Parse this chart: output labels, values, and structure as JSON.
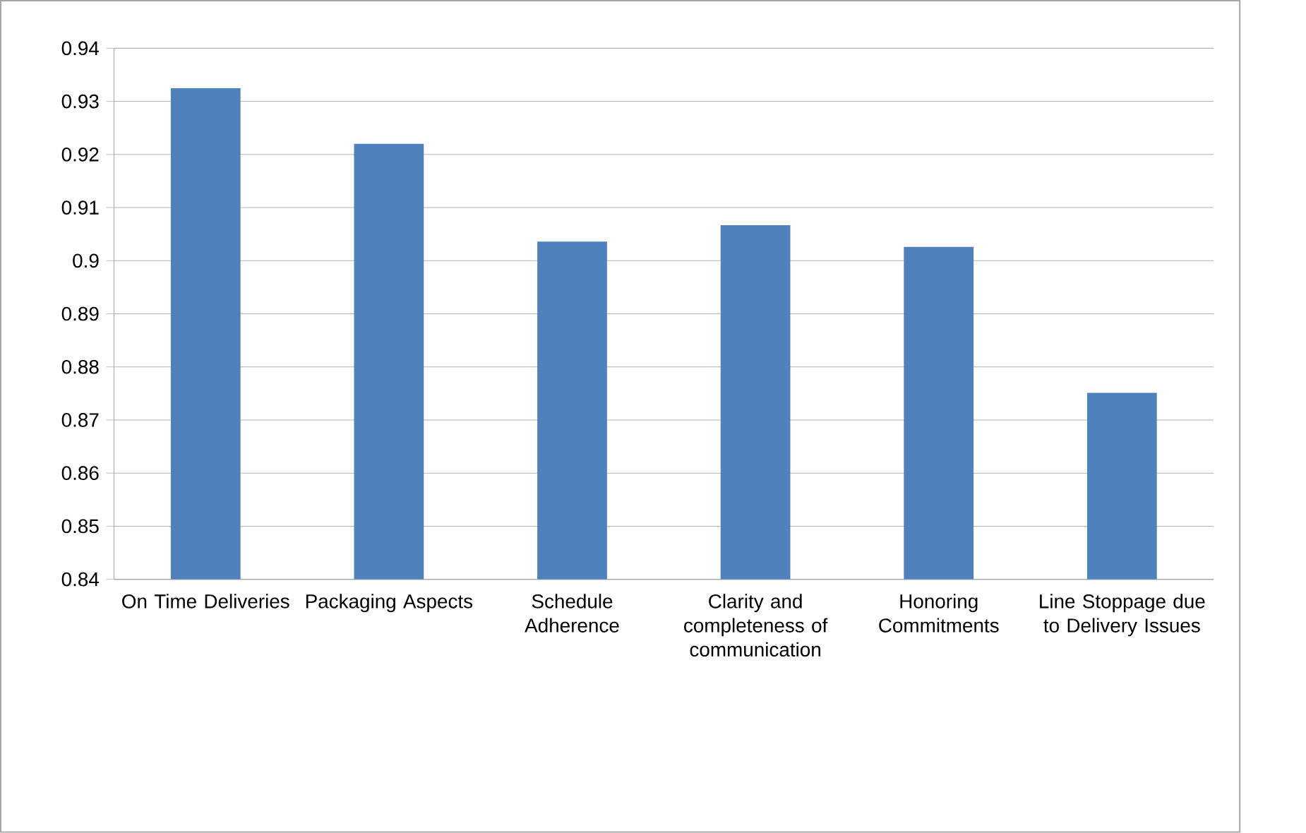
{
  "chart_data": {
    "type": "bar",
    "categories": [
      "On Time Deliveries",
      "Packaging Aspects",
      "Schedule Adherence",
      "Clarity and completeness of communication",
      "Honoring Commitments",
      "Line Stoppage due to Delivery Issues"
    ],
    "values": [
      0.9325,
      0.922,
      0.9036,
      0.9067,
      0.9026,
      0.8751
    ],
    "color": "#4f81bd",
    "ylim": [
      0.84,
      0.94
    ],
    "yticks": [
      0.84,
      0.85,
      0.86,
      0.87,
      0.88,
      0.89,
      0.9,
      0.91,
      0.92,
      0.93,
      0.94
    ],
    "grid": "y"
  }
}
